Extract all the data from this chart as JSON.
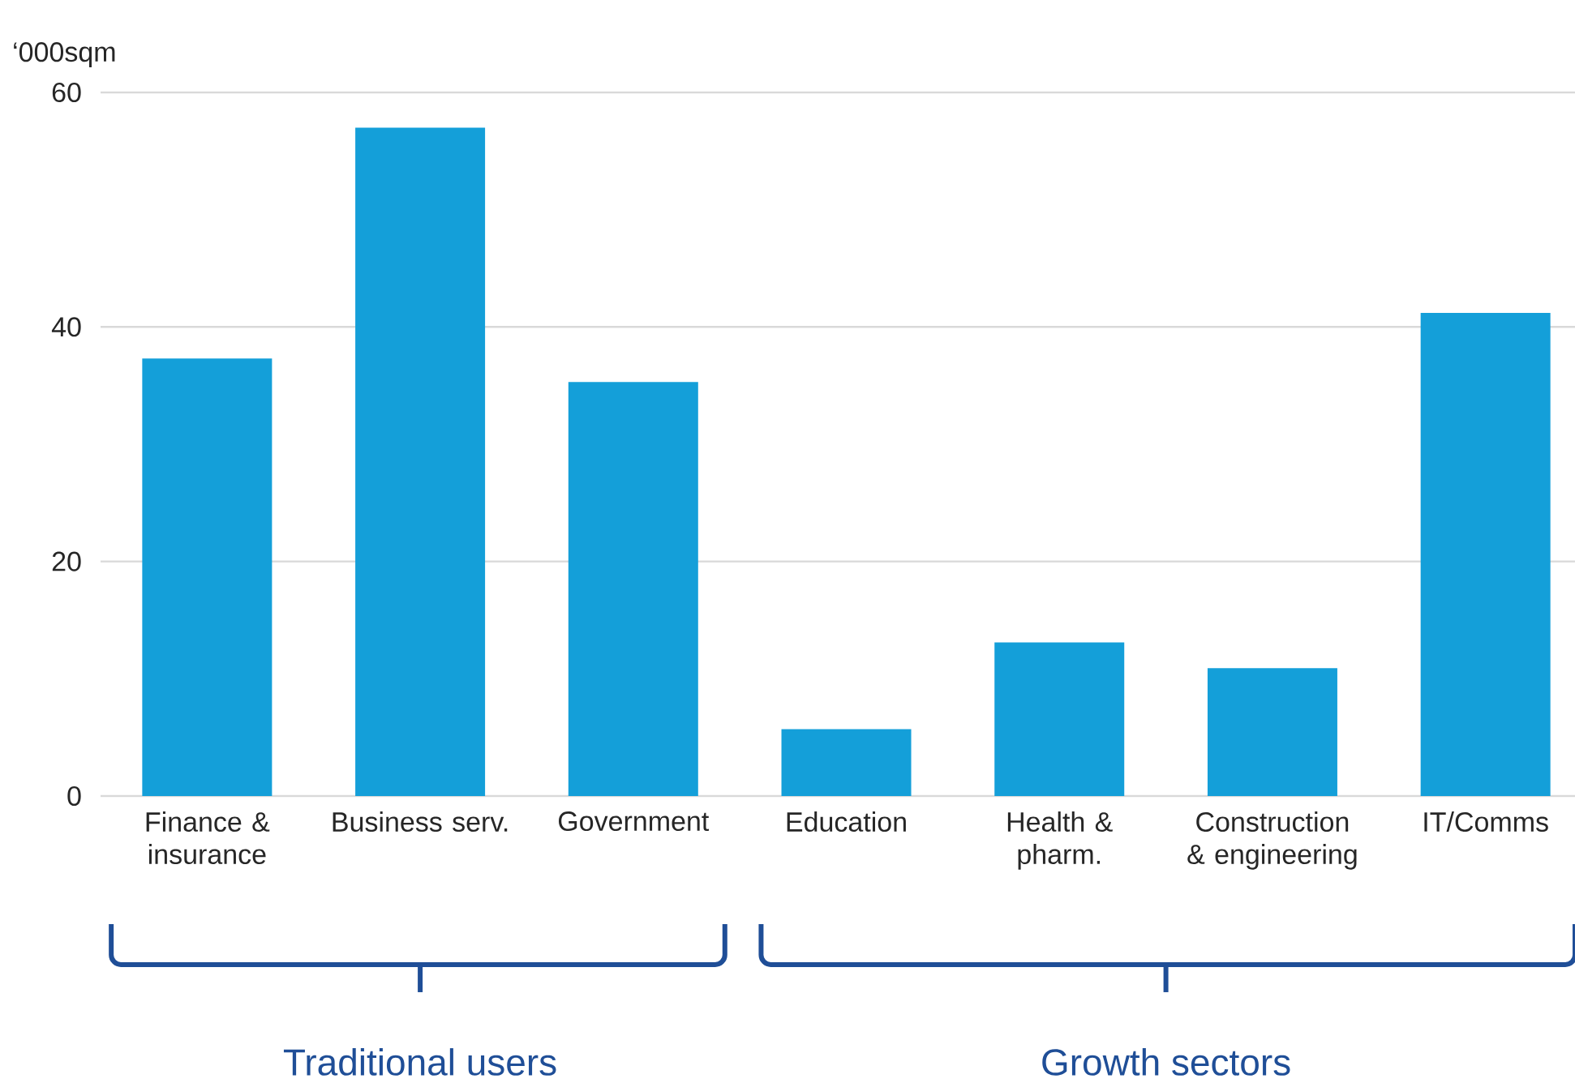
{
  "chart_data": {
    "type": "bar",
    "ylabel": "‘000sqm",
    "categories": [
      "Finance & insurance",
      "Business serv.",
      "Government",
      "Education",
      "Health & pharm.",
      "Construction & engineering",
      "IT/Comms"
    ],
    "values": [
      37.3,
      57.0,
      35.3,
      5.7,
      13.1,
      10.9,
      41.2
    ],
    "color": "#149fd9",
    "ylim": [
      0,
      60
    ],
    "yticks": [
      0,
      20,
      40,
      60
    ],
    "grid": "y",
    "annotations": [
      "Traditional users",
      "Growth sectors"
    ]
  }
}
